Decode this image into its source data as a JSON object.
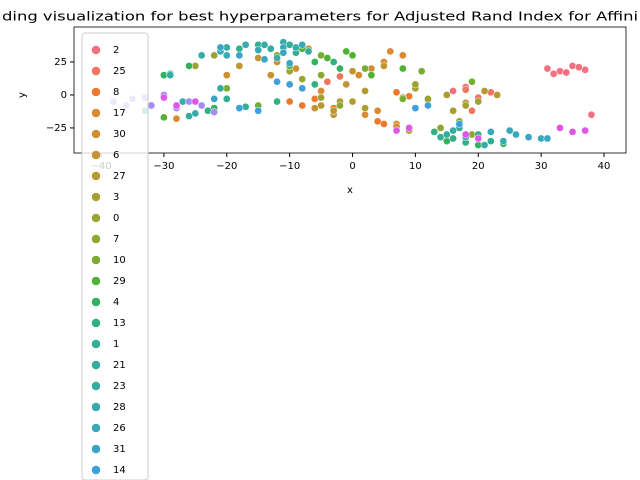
{
  "chart_data": {
    "type": "scatter",
    "title": "ding visualization for best hyperparameters for Adjusted Rand Index for Affini",
    "x_label": "x",
    "y_label": "y",
    "xlim": [
      -44.3,
      43.5
    ],
    "ylim": [
      -44,
      51.5
    ],
    "xticks": [
      {
        "value": -40,
        "label": "−40"
      },
      {
        "value": -30,
        "label": "−30"
      },
      {
        "value": -20,
        "label": "−20"
      },
      {
        "value": -10,
        "label": "−10"
      },
      0,
      10,
      20,
      30,
      40
    ],
    "yticks": [
      {
        "value": -25,
        "label": "−25"
      },
      0,
      25
    ],
    "grid": false,
    "legend": "upper left",
    "series": [
      {
        "name": "2",
        "color": "#f2707f",
        "x": [
          31,
          33,
          35,
          37,
          34,
          36,
          32,
          16,
          18,
          38
        ],
        "y": [
          20,
          18,
          22,
          19,
          17,
          21,
          16,
          3,
          6,
          -15
        ]
      },
      {
        "name": "25",
        "color": "#f0745e",
        "x": [
          15,
          18,
          20,
          22,
          -4,
          -2,
          12,
          19
        ],
        "y": [
          0,
          4,
          -2,
          2,
          10,
          14,
          -4,
          -12
        ]
      },
      {
        "name": "8",
        "color": "#eb7a2f",
        "x": [
          -10,
          -8,
          -6,
          5,
          7,
          9,
          4,
          -3
        ],
        "y": [
          -5,
          -8,
          -3,
          -22,
          2,
          -1,
          -20,
          -10
        ]
      },
      {
        "name": "17",
        "color": "#dc8a32",
        "x": [
          -8,
          -5,
          6,
          8,
          -28,
          2,
          4,
          7
        ],
        "y": [
          5,
          3,
          33,
          30,
          -18,
          -15,
          -12,
          -22
        ]
      },
      {
        "name": "30",
        "color": "#cf8f31",
        "x": [
          -9,
          -12,
          3,
          5,
          -7,
          1,
          7,
          -20
        ],
        "y": [
          20,
          25,
          20,
          25,
          35,
          15,
          -24,
          15
        ]
      },
      {
        "name": "6",
        "color": "#c29432",
        "x": [
          -18,
          -15,
          -13,
          -6,
          0,
          5,
          -3,
          -1
        ],
        "y": [
          22,
          28,
          15,
          -10,
          18,
          22,
          -15,
          8
        ]
      },
      {
        "name": "27",
        "color": "#b59a31",
        "x": [
          -3,
          0,
          2,
          12,
          18,
          21,
          23,
          -5
        ],
        "y": [
          -12,
          -5,
          3,
          -3,
          -6,
          3,
          0,
          -8
        ]
      },
      {
        "name": "3",
        "color": "#a89e31",
        "x": [
          8,
          10,
          16,
          18,
          15,
          -2,
          2,
          9
        ],
        "y": [
          -2,
          5,
          -12,
          -8,
          0,
          -5,
          -10,
          -27
        ]
      },
      {
        "name": "0",
        "color": "#9ba432",
        "x": [
          -25,
          -22,
          -10,
          -8,
          10,
          12,
          20,
          -5
        ],
        "y": [
          22,
          30,
          18,
          12,
          8,
          -3,
          -5,
          -2
        ]
      },
      {
        "name": "7",
        "color": "#8da831",
        "x": [
          -12,
          -10,
          -5,
          14,
          17,
          19,
          22,
          -2
        ],
        "y": [
          30,
          22,
          15,
          -25,
          -20,
          -30,
          -28,
          -8
        ]
      },
      {
        "name": "10",
        "color": "#77ad31",
        "x": [
          -5,
          -3,
          2,
          11,
          19,
          -15,
          8,
          -20
        ],
        "y": [
          30,
          25,
          20,
          18,
          10,
          -8,
          -3,
          5
        ]
      },
      {
        "name": "29",
        "color": "#4fb232",
        "x": [
          -8,
          -4,
          0,
          -1,
          8,
          -30,
          -10,
          3
        ],
        "y": [
          35,
          28,
          30,
          33,
          20,
          -17,
          22,
          15
        ]
      },
      {
        "name": "4",
        "color": "#32b15e",
        "x": [
          -2,
          -6,
          -30,
          15,
          20,
          24,
          -22,
          -26
        ],
        "y": [
          20,
          25,
          15,
          -35,
          -38,
          -37,
          -10,
          22
        ]
      },
      {
        "name": "13",
        "color": "#33b07f",
        "x": [
          13,
          16,
          20,
          -12,
          -3,
          -29,
          -6,
          18
        ],
        "y": [
          -28,
          -33,
          -30,
          -5,
          25,
          16,
          8,
          -36
        ]
      },
      {
        "name": "1",
        "color": "#34ae91",
        "x": [
          -18,
          -15,
          -9,
          14,
          17,
          -23,
          -20,
          22
        ],
        "y": [
          35,
          38,
          32,
          -32,
          -25,
          -12,
          -3,
          -35
        ]
      },
      {
        "name": "21",
        "color": "#35ad9c",
        "x": [
          -13,
          -10,
          -7,
          15,
          -21,
          -26,
          -17,
          20
        ],
        "y": [
          35,
          38,
          33,
          -30,
          5,
          -16,
          -9,
          -33
        ]
      },
      {
        "name": "23",
        "color": "#36ada4",
        "x": [
          -24,
          -20,
          -14,
          -11,
          16,
          21,
          -33,
          -29
        ],
        "y": [
          30,
          36,
          38,
          40,
          -27,
          -38,
          -12,
          15
        ]
      },
      {
        "name": "28",
        "color": "#37abad",
        "x": [
          -21,
          -17,
          -12,
          -9,
          -27,
          -25,
          18,
          24
        ],
        "y": [
          33,
          38,
          28,
          36,
          -5,
          -14,
          -32,
          -35
        ]
      },
      {
        "name": "26",
        "color": "#38a9b8",
        "x": [
          -20,
          -15,
          -11,
          -8,
          26,
          30,
          25,
          22
        ],
        "y": [
          30,
          34,
          36,
          38,
          -30,
          -33,
          -27,
          -28
        ]
      },
      {
        "name": "31",
        "color": "#3aa6c5",
        "x": [
          -21,
          -18,
          -14,
          -11,
          -10,
          -22,
          28,
          31
        ],
        "y": [
          36,
          30,
          27,
          32,
          24,
          -3,
          -32,
          -33
        ]
      },
      {
        "name": "14",
        "color": "#3ca1da",
        "x": [
          -12,
          -10,
          -8,
          -15,
          10,
          12,
          17,
          -18
        ],
        "y": [
          10,
          8,
          5,
          -12,
          -10,
          -8,
          -22,
          -10
        ]
      },
      {
        "color": "#a48cf4",
        "x": [
          -38,
          -35,
          -32,
          -30,
          -28,
          -26,
          -33,
          -36,
          -22,
          -24
        ],
        "y": [
          -5,
          -3,
          -8,
          0,
          -10,
          -5,
          -2,
          -8,
          -13,
          -8
        ]
      },
      {
        "color": "#e056e6",
        "x": [
          -30,
          -28,
          -25,
          7,
          9,
          20,
          33,
          35,
          37,
          18
        ],
        "y": [
          -2,
          -8,
          -5,
          -27,
          -25,
          -33,
          -25,
          -28,
          -27,
          -30
        ]
      }
    ]
  }
}
